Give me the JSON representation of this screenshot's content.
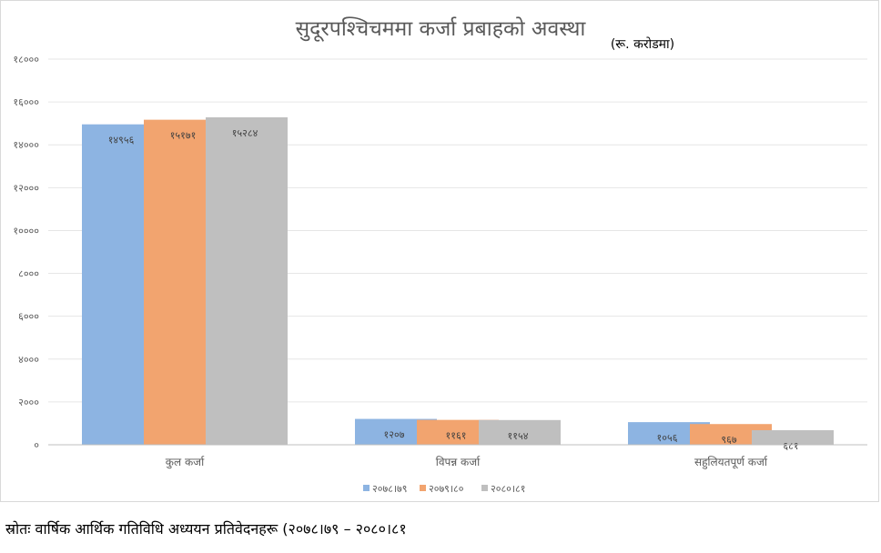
{
  "source_text": "स्रोतः वार्षिक आर्थिक गतिविधि अध्ययन प्रतिवेदनहरू (२०७८।७९ – २०८०।८१",
  "colors": {
    "s1": "#8db4e2",
    "s2": "#f2a46f",
    "s3": "#bfbfbf",
    "grid": "#e6e6e6",
    "axis": "#bfbfbf"
  },
  "chart_data": {
    "type": "bar",
    "title": "सुदूरपश्चिचममा कर्जा प्रबाहको अवस्था",
    "subtitle": "(रू. करोडमा)",
    "xlabel": "",
    "ylabel": "",
    "ylim": [
      0,
      18000
    ],
    "yticks": [
      0,
      2000,
      4000,
      6000,
      8000,
      10000,
      12000,
      14000,
      16000,
      18000
    ],
    "ytick_labels": [
      "०",
      "२०००",
      "४०००",
      "६०००",
      "८०००",
      "१००००",
      "१२०००",
      "१४०००",
      "१६०००",
      "१८०००"
    ],
    "grid": true,
    "legend_position": "bottom",
    "categories": [
      "कुल कर्जा",
      "विपन्न कर्जा",
      "सहुलियतपूर्ण कर्जा"
    ],
    "series": [
      {
        "name": "२०७८।७९",
        "values": [
          14956,
          1207,
          1056
        ],
        "labels": [
          "१४९५६",
          "१२०७",
          "१०५६"
        ]
      },
      {
        "name": "२०७९।८०",
        "values": [
          15171,
          1161,
          967
        ],
        "labels": [
          "१५१७१",
          "११६१",
          "९६७"
        ]
      },
      {
        "name": "२०८०।८१",
        "values": [
          15284,
          1154,
          681
        ],
        "labels": [
          "१५२८४",
          "११५४",
          "६८१"
        ]
      }
    ]
  }
}
